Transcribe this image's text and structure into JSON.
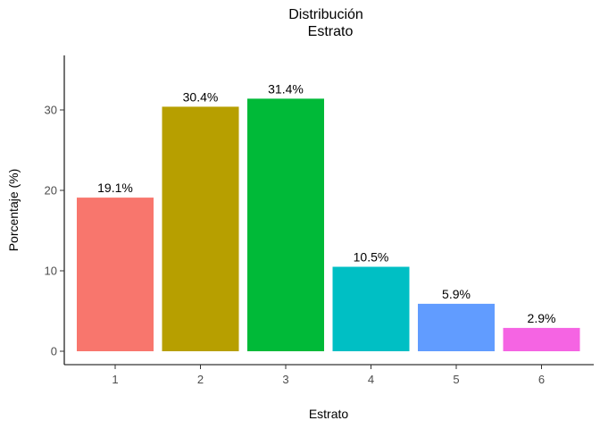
{
  "chart_data": {
    "type": "bar",
    "title_lines": [
      "Distribución",
      "Estrato"
    ],
    "xlabel": "Estrato",
    "ylabel": "Porcentaje (%)",
    "categories": [
      "1",
      "2",
      "3",
      "4",
      "5",
      "6"
    ],
    "values": [
      19.1,
      30.4,
      31.4,
      10.5,
      5.9,
      2.9
    ],
    "data_labels": [
      "19.1%",
      "30.4%",
      "31.4%",
      "10.5%",
      "5.9%",
      "2.9%"
    ],
    "colors": [
      "#F8766D",
      "#B79F00",
      "#00BA38",
      "#00BFC4",
      "#619CFF",
      "#F564E3"
    ],
    "ylim": [
      0,
      36.9
    ],
    "yticks": [
      0,
      10,
      20,
      30
    ],
    "ytick_labels": [
      "0",
      "10",
      "20",
      "30"
    ],
    "grid": false,
    "legend": "none"
  }
}
